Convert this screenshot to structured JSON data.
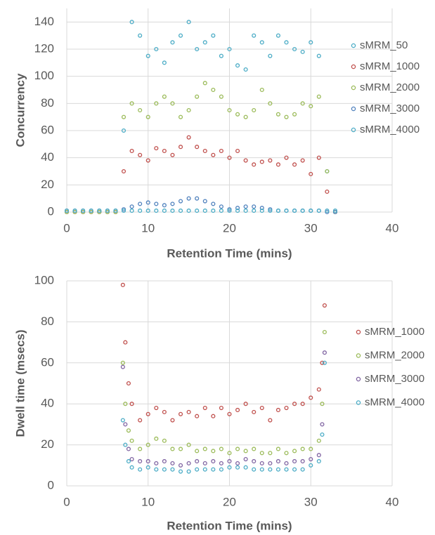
{
  "chart_data": [
    {
      "type": "scatter",
      "ylabel": "Concurrency",
      "xlabel": "Retention Time (mins)",
      "xlim": [
        0,
        40
      ],
      "xticks": [
        0,
        10,
        20,
        30,
        40
      ],
      "ylim": [
        0,
        150
      ],
      "yticks": [
        0,
        20,
        40,
        60,
        80,
        100,
        120,
        140
      ],
      "grid": true,
      "legend": "right",
      "x": [
        0,
        1,
        2,
        3,
        4,
        5,
        6,
        7,
        8,
        9,
        10,
        11,
        12,
        13,
        14,
        15,
        16,
        17,
        18,
        19,
        20,
        21,
        22,
        23,
        24,
        25,
        26,
        27,
        28,
        29,
        30,
        31,
        32,
        33
      ],
      "series": [
        {
          "name": "sMRM_50",
          "color": "#4bacc6",
          "values": [
            0,
            0,
            0,
            0,
            0,
            0,
            0,
            60,
            140,
            130,
            115,
            120,
            110,
            125,
            130,
            140,
            120,
            125,
            130,
            115,
            120,
            108,
            105,
            130,
            125,
            115,
            130,
            125,
            120,
            118,
            125,
            115,
            30,
            0
          ]
        },
        {
          "name": "sMRM_1000",
          "color": "#c0504d",
          "values": [
            0,
            0,
            0,
            0,
            0,
            0,
            0,
            30,
            45,
            42,
            38,
            47,
            45,
            42,
            48,
            55,
            48,
            45,
            42,
            45,
            40,
            45,
            38,
            35,
            37,
            38,
            35,
            40,
            35,
            38,
            28,
            40,
            15,
            0
          ]
        },
        {
          "name": "sMRM_2000",
          "color": "#9bbb59",
          "values": [
            0,
            0,
            0,
            0,
            0,
            0,
            0,
            70,
            80,
            75,
            70,
            80,
            85,
            80,
            70,
            75,
            85,
            95,
            90,
            85,
            75,
            72,
            70,
            75,
            90,
            80,
            72,
            70,
            72,
            80,
            78,
            85,
            30,
            0
          ]
        },
        {
          "name": "sMRM_3000",
          "color": "#4f81bd",
          "values": [
            1,
            1,
            1,
            1,
            1,
            1,
            1,
            2,
            4,
            6,
            7,
            6,
            5,
            6,
            8,
            10,
            10,
            8,
            6,
            4,
            2,
            3,
            4,
            4,
            3,
            2,
            1,
            1,
            1,
            1,
            1,
            1,
            0,
            0
          ]
        },
        {
          "name": "sMRM_4000",
          "color": "#4bacc6",
          "values": [
            1,
            1,
            1,
            1,
            1,
            1,
            1,
            1,
            1,
            1,
            1,
            1,
            1,
            1,
            1,
            1,
            1,
            1,
            1,
            1,
            1,
            1,
            1,
            1,
            1,
            1,
            1,
            1,
            1,
            1,
            1,
            1,
            1,
            1
          ]
        }
      ]
    },
    {
      "type": "scatter",
      "ylabel": "Dwell time (msecs)",
      "xlabel": "Retention Time (mins)",
      "xlim": [
        0,
        40
      ],
      "xticks": [
        0,
        10,
        20,
        30,
        40
      ],
      "ylim": [
        0,
        100
      ],
      "yticks": [
        0,
        20,
        40,
        60,
        80,
        100
      ],
      "grid": true,
      "legend": "right",
      "x": [
        6.9,
        7.2,
        7.6,
        8,
        9,
        10,
        11,
        12,
        13,
        14,
        15,
        16,
        17,
        18,
        19,
        20,
        21,
        22,
        23,
        24,
        25,
        26,
        27,
        28,
        29,
        30,
        31,
        31.4,
        31.7
      ],
      "series": [
        {
          "name": "sMRM_1000",
          "color": "#c0504d",
          "values": [
            98,
            70,
            50,
            40,
            32,
            35,
            38,
            36,
            32,
            35,
            36,
            34,
            38,
            34,
            38,
            35,
            37,
            40,
            36,
            38,
            32,
            37,
            38,
            40,
            40,
            43,
            47,
            60,
            88
          ]
        },
        {
          "name": "sMRM_2000",
          "color": "#9bbb59",
          "values": [
            60,
            40,
            27,
            22,
            18,
            20,
            23,
            22,
            18,
            18,
            20,
            17,
            18,
            17,
            18,
            16,
            18,
            17,
            18,
            16,
            16,
            18,
            16,
            17,
            18,
            18,
            22,
            40,
            75
          ]
        },
        {
          "name": "sMRM_3000",
          "color": "#8064a2",
          "values": [
            58,
            30,
            18,
            13,
            12,
            12,
            11,
            12,
            11,
            10,
            11,
            12,
            11,
            12,
            11,
            12,
            11,
            13,
            12,
            11,
            11,
            12,
            11,
            12,
            12,
            13,
            15,
            30,
            65
          ]
        },
        {
          "name": "sMRM_4000",
          "color": "#4bacc6",
          "values": [
            32,
            20,
            12,
            9,
            8,
            9,
            8,
            8,
            8,
            7,
            7,
            8,
            8,
            8,
            8,
            9,
            9,
            9,
            8,
            8,
            8,
            8,
            8,
            8,
            8,
            10,
            12,
            25,
            60
          ]
        }
      ]
    }
  ]
}
